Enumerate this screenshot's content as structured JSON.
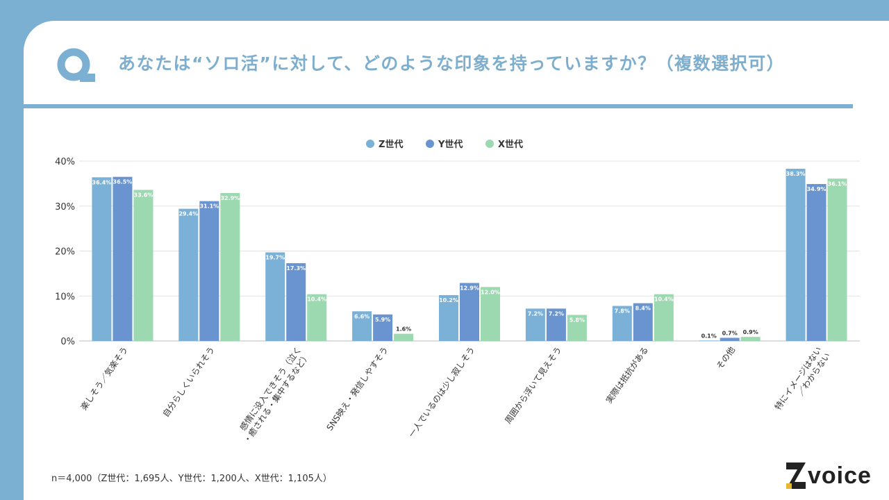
{
  "header": {
    "title": "あなたは“ソロ活”に対して、どのような印象を持っていますか？（複数選択可）"
  },
  "colors": {
    "z": "#7bb1d6",
    "y": "#6a94cf",
    "x": "#9cd8b0",
    "accent": "#7bb0d2"
  },
  "chart_data": {
    "type": "bar",
    "categories": [
      "楽しそう／気楽そう",
      "自分らしくいられそう",
      "感情に没入できそう（泣く・癒される・集中するなど）",
      "SNS映え・発信しやすそう",
      "一人でいるのは少し寂しそう",
      "周囲から浮いて見えそう",
      "実際は抵抗がある",
      "その他",
      "特にイメージはない／わからない"
    ],
    "category_lines": [
      [
        "楽しそう／気楽そう"
      ],
      [
        "自分らしくいられそう"
      ],
      [
        "感情に没入できそう（泣く",
        "・癒される・集中するなど）"
      ],
      [
        "SNS映え・発信しやすそう"
      ],
      [
        "一人でいるのは少し寂しそう"
      ],
      [
        "周囲から浮いて見えそう"
      ],
      [
        "実際は抵抗がある"
      ],
      [
        "その他"
      ],
      [
        "特にイメージはない",
        "／わからない"
      ]
    ],
    "series": [
      {
        "name": "Z世代",
        "values": [
          36.4,
          29.4,
          19.7,
          6.6,
          10.2,
          7.2,
          7.8,
          0.1,
          38.3
        ]
      },
      {
        "name": "Y世代",
        "values": [
          36.5,
          31.1,
          17.3,
          5.9,
          12.9,
          7.2,
          8.4,
          0.7,
          34.9
        ]
      },
      {
        "name": "X世代",
        "values": [
          33.6,
          32.9,
          10.4,
          1.6,
          12.0,
          5.8,
          10.4,
          0.9,
          36.1
        ]
      }
    ],
    "y_ticks": [
      "0%",
      "10%",
      "20%",
      "30%",
      "40%"
    ],
    "ylim": [
      0,
      40
    ],
    "unit": "%",
    "legend_position": "top-center",
    "grid": true
  },
  "footnote": "n＝4,000（Z世代：1,695人、Y世代：1,200人、X世代：1,105人）",
  "logo": {
    "text": "voice",
    "mark": "Z"
  }
}
